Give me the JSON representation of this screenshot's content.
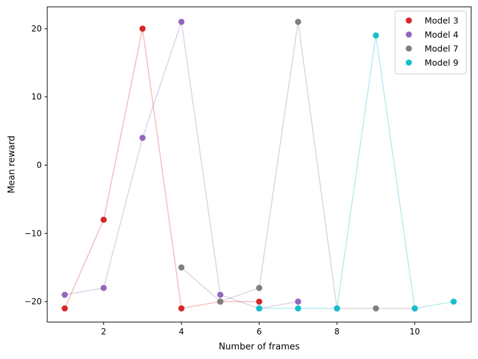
{
  "chart_data": {
    "type": "scatter",
    "xlabel": "Number of frames",
    "ylabel": "Mean reward",
    "xlim": [
      0.55,
      11.45
    ],
    "ylim": [
      -23,
      23.2
    ],
    "xticks": [
      2,
      4,
      6,
      8,
      10
    ],
    "yticks": [
      -20,
      -10,
      0,
      10,
      20
    ],
    "ytick_labels": [
      "−20",
      "−10",
      "0",
      "10",
      "20"
    ],
    "legend_position": "top-right",
    "grid": false,
    "series": [
      {
        "name": "Model 3",
        "color": "#d62728",
        "x": [
          1,
          2,
          3,
          4,
          5,
          6
        ],
        "y": [
          -21,
          -8,
          20,
          -21,
          -20,
          -20
        ]
      },
      {
        "name": "Model 4",
        "color": "#9467bd",
        "x": [
          1,
          2,
          3,
          4,
          5,
          6,
          7
        ],
        "y": [
          -19,
          -18,
          4,
          21,
          -19,
          -21,
          -20
        ]
      },
      {
        "name": "Model 7",
        "color": "#7f7f7f",
        "x": [
          4,
          5,
          6,
          7,
          8,
          9,
          10
        ],
        "y": [
          -15,
          -20,
          -18,
          21,
          -21,
          -21,
          -21
        ]
      },
      {
        "name": "Model 9",
        "color": "#17becf",
        "x": [
          6,
          7,
          8,
          9,
          10,
          11
        ],
        "y": [
          -21,
          -21,
          -21,
          19,
          -21,
          -20
        ]
      }
    ]
  }
}
